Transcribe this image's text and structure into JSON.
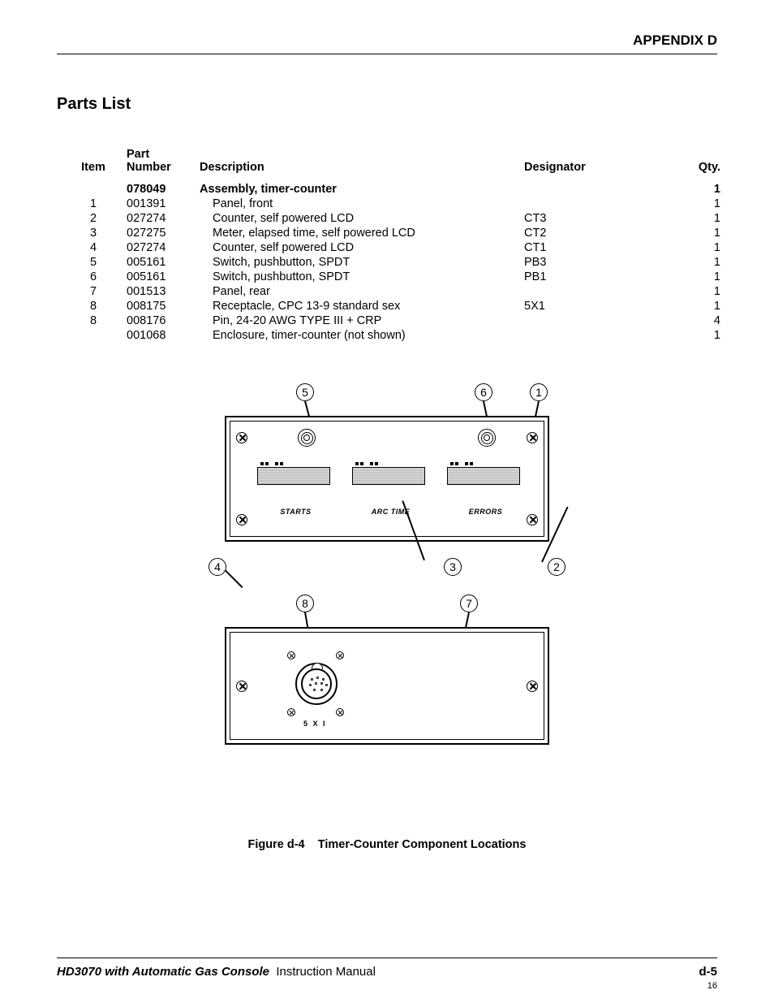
{
  "header": {
    "appendix": "APPENDIX D"
  },
  "section_title": "Parts List",
  "table": {
    "headers": {
      "item": "Item",
      "part_number_l1": "Part",
      "part_number_l2": "Number",
      "description": "Description",
      "designator": "Designator",
      "qty": "Qty."
    },
    "rows": [
      {
        "item": "",
        "pn": "078049",
        "desc": "Assembly, timer-counter",
        "desig": "",
        "qty": "1",
        "bold": true,
        "indent": false
      },
      {
        "item": "1",
        "pn": "001391",
        "desc": "Panel, front",
        "desig": "",
        "qty": "1",
        "bold": false,
        "indent": true
      },
      {
        "item": "2",
        "pn": "027274",
        "desc": "Counter, self powered LCD",
        "desig": "CT3",
        "qty": "1",
        "bold": false,
        "indent": true
      },
      {
        "item": "3",
        "pn": "027275",
        "desc": "Meter, elapsed time, self powered LCD",
        "desig": "CT2",
        "qty": "1",
        "bold": false,
        "indent": true
      },
      {
        "item": "4",
        "pn": "027274",
        "desc": "Counter, self powered LCD",
        "desig": "CT1",
        "qty": "1",
        "bold": false,
        "indent": true
      },
      {
        "item": "5",
        "pn": "005161",
        "desc": "Switch, pushbutton, SPDT",
        "desig": "PB3",
        "qty": "1",
        "bold": false,
        "indent": true
      },
      {
        "item": "6",
        "pn": "005161",
        "desc": "Switch, pushbutton, SPDT",
        "desig": "PB1",
        "qty": "1",
        "bold": false,
        "indent": true
      },
      {
        "item": "7",
        "pn": "001513",
        "desc": "Panel, rear",
        "desig": "",
        "qty": "1",
        "bold": false,
        "indent": true
      },
      {
        "item": "8",
        "pn": "008175",
        "desc": "Receptacle, CPC 13-9 standard sex",
        "desig": "5X1",
        "qty": "1",
        "bold": false,
        "indent": true
      },
      {
        "item": "8",
        "pn": "008176",
        "desc": "Pin, 24-20 AWG TYPE III + CRP",
        "desig": "",
        "qty": "4",
        "bold": false,
        "indent": true
      },
      {
        "item": "",
        "pn": "001068",
        "desc": "Enclosure, timer-counter (not shown)",
        "desig": "",
        "qty": "1",
        "bold": false,
        "indent": true
      }
    ]
  },
  "diagram": {
    "front_panel": {
      "displays": [
        {
          "label": "STARTS"
        },
        {
          "label": "ARC TIME"
        },
        {
          "label": "ERRORS"
        }
      ]
    },
    "rear_panel": {
      "connector_label": "5 X I"
    },
    "callouts": [
      "1",
      "2",
      "3",
      "4",
      "5",
      "6",
      "7",
      "8"
    ]
  },
  "caption": {
    "fig": "Figure d-4",
    "title": "Timer-Counter Component Locations"
  },
  "footer": {
    "product": "HD3070 with Automatic Gas Console",
    "doc": "Instruction Manual",
    "page": "d-5",
    "sub": "16"
  }
}
